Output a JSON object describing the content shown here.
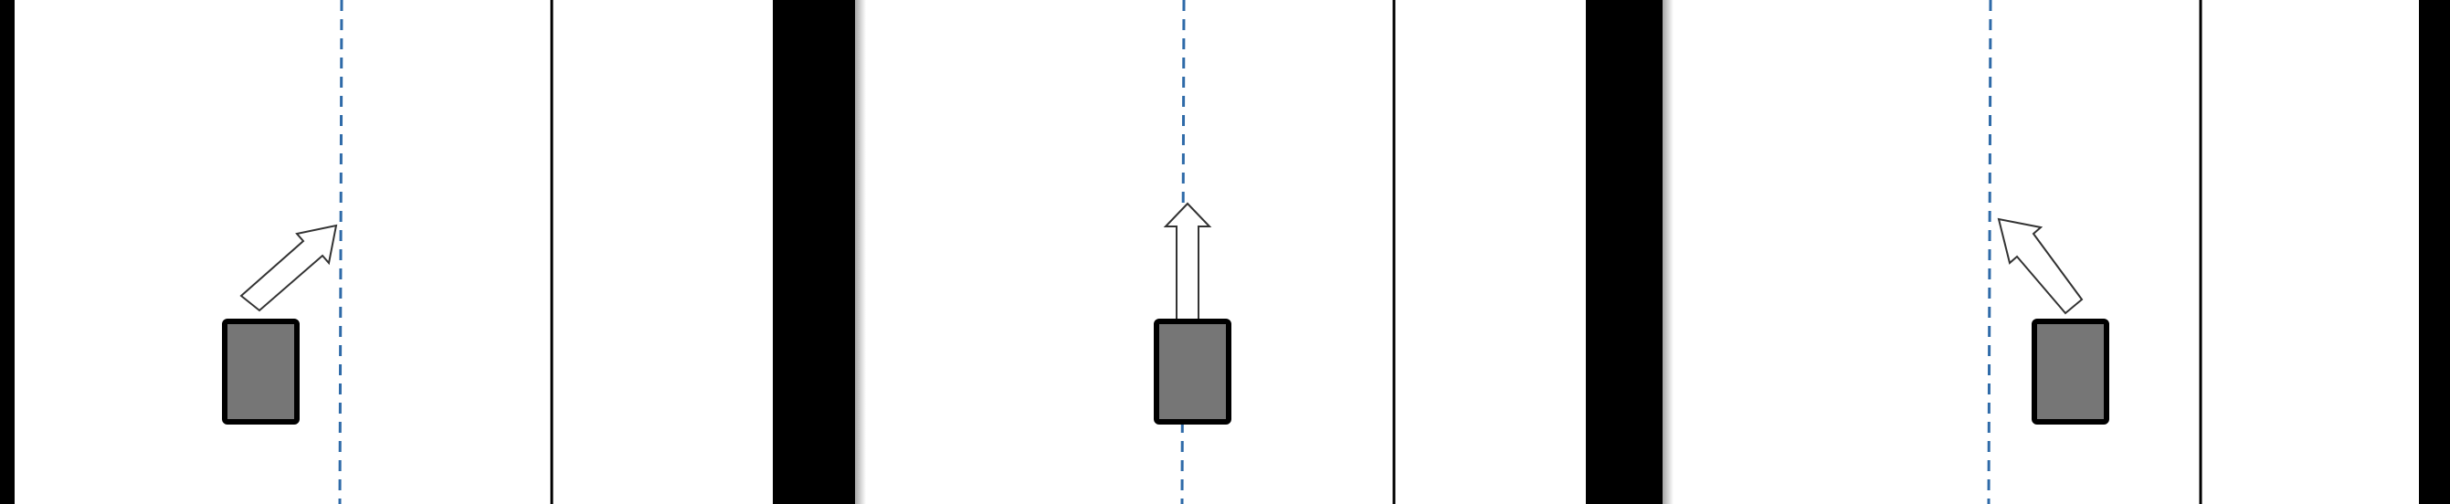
{
  "panels": [
    {
      "id": "panel-left",
      "vehicle_offset": "left-of-center",
      "arrow_direction": "up-right"
    },
    {
      "id": "panel-center",
      "vehicle_offset": "on-center",
      "arrow_direction": "up"
    },
    {
      "id": "panel-right",
      "vehicle_offset": "right-of-center",
      "arrow_direction": "up-left"
    }
  ],
  "colors": {
    "background": "#ffffff",
    "wall": "#000000",
    "lane_line": "#000000",
    "center_line": "#2e6aa8",
    "vehicle_fill": "#767676",
    "vehicle_stroke": "#000000",
    "arrow_fill": "#ffffff",
    "arrow_stroke": "#333333"
  },
  "icons": {
    "vehicle": "vehicle-rect",
    "arrow": "direction-arrow"
  }
}
